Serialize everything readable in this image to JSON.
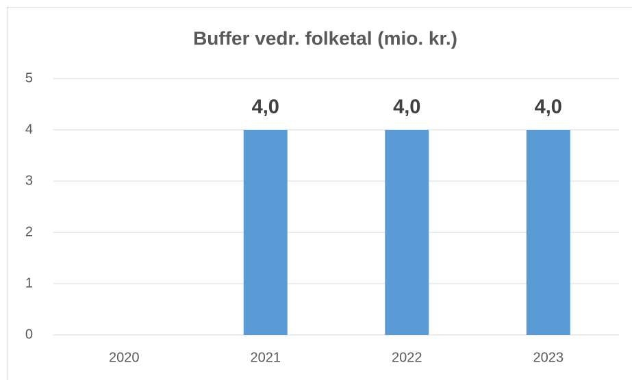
{
  "chart_data": {
    "type": "bar",
    "title": "Buffer vedr. folketal (mio. kr.)",
    "categories": [
      "2020",
      "2021",
      "2022",
      "2023"
    ],
    "values": [
      null,
      4,
      4,
      4
    ],
    "value_labels": [
      null,
      "4,0",
      "4,0",
      "4,0"
    ],
    "color": "#5b9bd5",
    "ylim": [
      0,
      5
    ],
    "yticks": [
      0,
      1,
      2,
      3,
      4,
      5
    ],
    "grid": true
  }
}
